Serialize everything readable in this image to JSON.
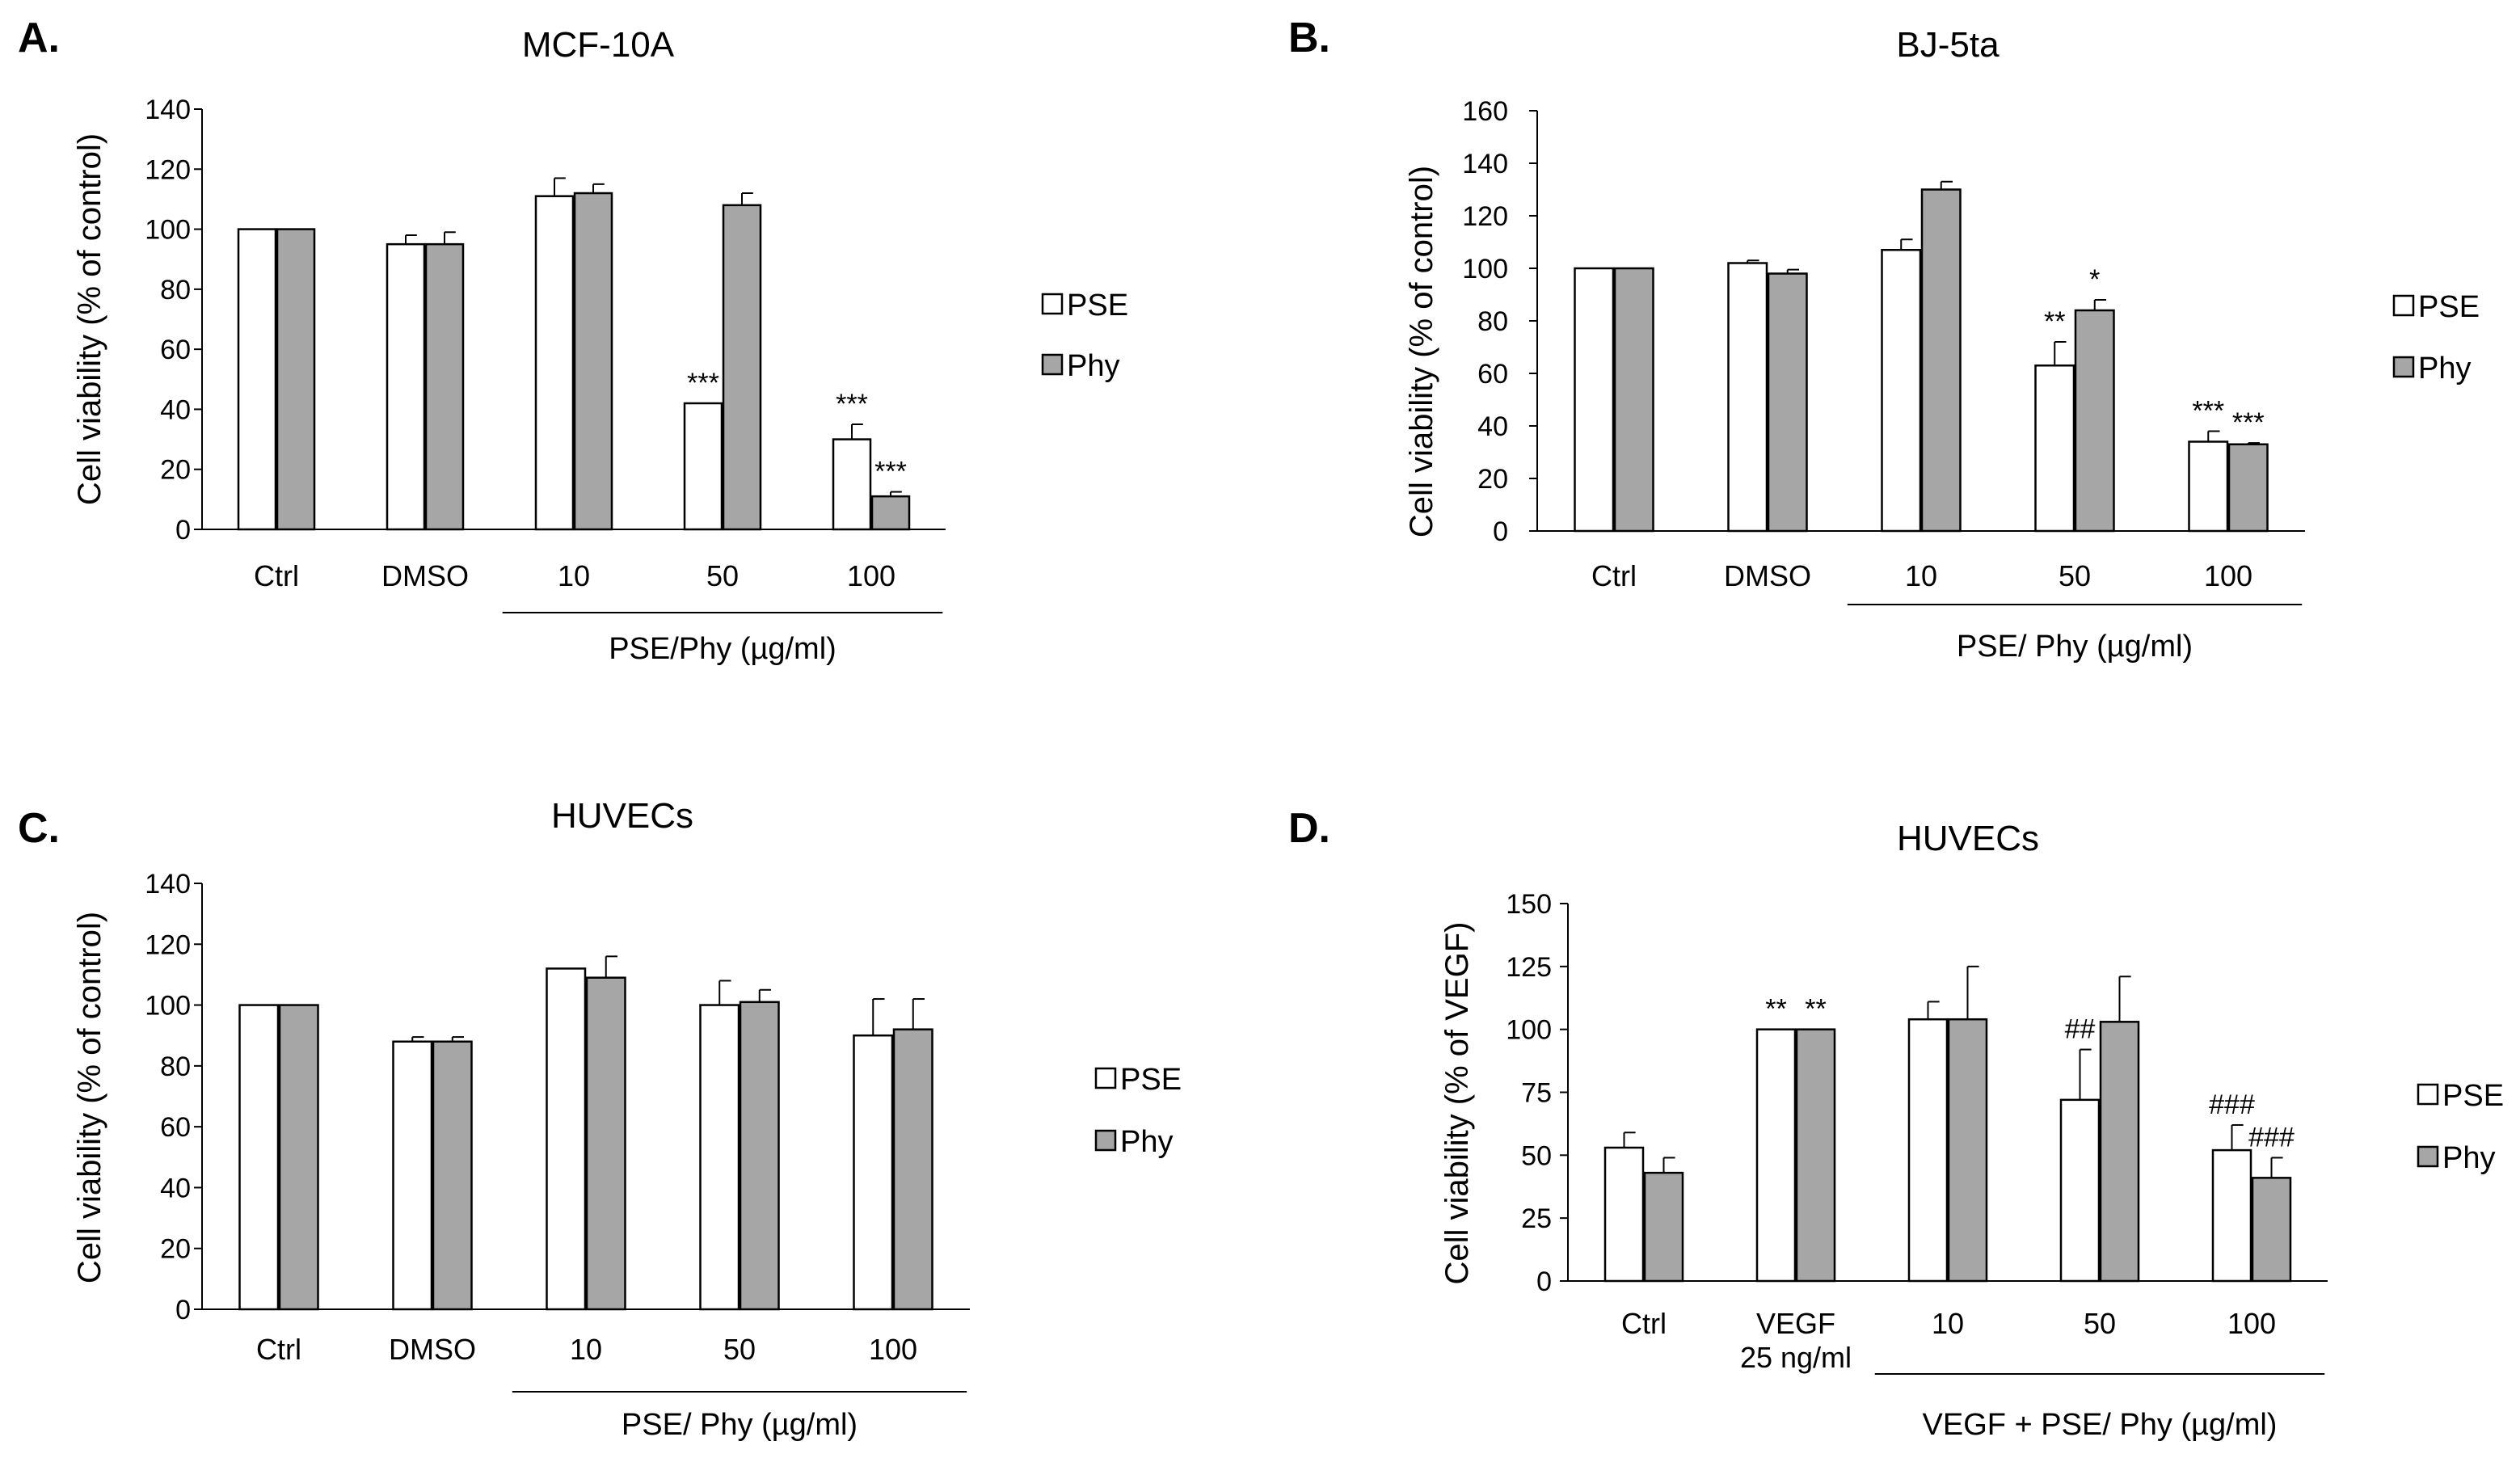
{
  "figure": "Cell viability of normal cells treated with PSE and Phy",
  "chart_data": [
    {
      "panel": "A.",
      "type": "bar",
      "title": "MCF-10A",
      "ylabel": "Cell viability (% of control)",
      "xlabel": "PSE/Phy (µg/ml)",
      "ylim": [
        0,
        140
      ],
      "yticks": [
        0,
        20,
        40,
        60,
        80,
        100,
        120,
        140
      ],
      "categories": [
        "Ctrl",
        "DMSO",
        "10",
        "50",
        "100"
      ],
      "bracket_categories": [
        "10",
        "100"
      ],
      "series": [
        {
          "name": "PSE",
          "color": "#ffffff",
          "values": [
            100,
            95,
            111,
            42,
            30
          ],
          "errors": [
            0,
            3,
            6,
            0,
            5
          ],
          "annotations": [
            "",
            "",
            "",
            "***",
            "***"
          ]
        },
        {
          "name": "Phy",
          "color": "#a6a6a6",
          "values": [
            100,
            95,
            112,
            108,
            11
          ],
          "errors": [
            0,
            4,
            3,
            4,
            1.5
          ],
          "annotations": [
            "",
            "",
            "",
            "",
            "***"
          ]
        }
      ],
      "legend": [
        "PSE",
        "Phy"
      ]
    },
    {
      "panel": "B.",
      "type": "bar",
      "title": "BJ-5ta",
      "ylabel": "Cell viability (% of control)",
      "xlabel": "PSE/ Phy (µg/ml)",
      "ylim": [
        0,
        160
      ],
      "yticks": [
        0,
        20,
        40,
        60,
        80,
        100,
        120,
        140,
        160
      ],
      "categories": [
        "Ctrl",
        "DMSO",
        "10",
        "50",
        "100"
      ],
      "bracket_categories": [
        "10",
        "100"
      ],
      "series": [
        {
          "name": "PSE",
          "color": "#ffffff",
          "values": [
            100,
            102,
            107,
            63,
            34
          ],
          "errors": [
            0,
            1,
            4,
            9,
            4
          ],
          "annotations": [
            "",
            "",
            "",
            "**",
            "***"
          ]
        },
        {
          "name": "Phy",
          "color": "#a6a6a6",
          "values": [
            100,
            98,
            130,
            84,
            33
          ],
          "errors": [
            0,
            1.5,
            3,
            4,
            0.5
          ],
          "annotations": [
            "",
            "",
            "",
            "*",
            "***"
          ]
        }
      ],
      "legend": [
        "PSE",
        "Phy"
      ]
    },
    {
      "panel": "C.",
      "type": "bar",
      "title": "HUVECs",
      "ylabel": "Cell viability (% of control)",
      "xlabel": "PSE/ Phy (µg/ml)",
      "ylim": [
        0,
        140
      ],
      "yticks": [
        0,
        20,
        40,
        60,
        80,
        100,
        120,
        140
      ],
      "categories": [
        "Ctrl",
        "DMSO",
        "10",
        "50",
        "100"
      ],
      "bracket_categories": [
        "10",
        "100"
      ],
      "series": [
        {
          "name": "PSE",
          "color": "#ffffff",
          "values": [
            100,
            88,
            112,
            100,
            90
          ],
          "errors": [
            0,
            1.5,
            0,
            8,
            12
          ],
          "annotations": [
            "",
            "",
            "",
            "",
            ""
          ]
        },
        {
          "name": "Phy",
          "color": "#a6a6a6",
          "values": [
            100,
            88,
            109,
            101,
            92
          ],
          "errors": [
            0,
            1.5,
            7,
            4,
            10
          ],
          "annotations": [
            "",
            "",
            "",
            "",
            ""
          ]
        }
      ],
      "legend": [
        "PSE",
        "Phy"
      ]
    },
    {
      "panel": "D.",
      "type": "bar",
      "title": "HUVECs",
      "ylabel": "Cell viability (% of VEGF)",
      "xlabel": "VEGF + PSE/ Phy (µg/ml)",
      "ylim": [
        0,
        150
      ],
      "yticks": [
        0,
        25,
        50,
        75,
        100,
        125,
        150
      ],
      "categories": [
        "Ctrl",
        "VEGF\n25 ng/ml",
        "10",
        "50",
        "100"
      ],
      "bracket_categories": [
        "10",
        "100"
      ],
      "series": [
        {
          "name": "PSE",
          "color": "#ffffff",
          "values": [
            53,
            100,
            104,
            72,
            52
          ],
          "errors": [
            6,
            0,
            7,
            20,
            10
          ],
          "annotations": [
            "",
            "**",
            "",
            "##",
            "###"
          ]
        },
        {
          "name": "Phy",
          "color": "#a6a6a6",
          "values": [
            43,
            100,
            104,
            103,
            41
          ],
          "errors": [
            6,
            0,
            21,
            18,
            8
          ],
          "annotations": [
            "",
            "**",
            "",
            "",
            "###"
          ]
        }
      ],
      "legend": [
        "PSE",
        "Phy"
      ]
    }
  ]
}
